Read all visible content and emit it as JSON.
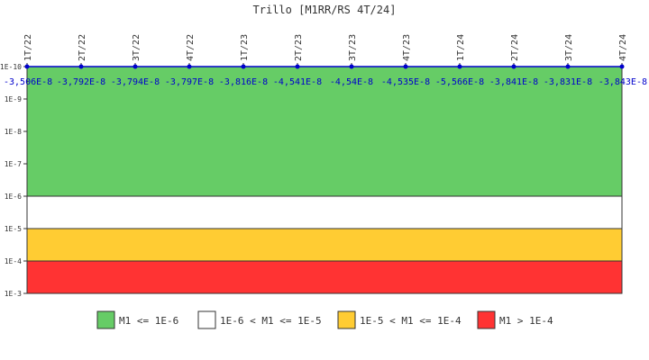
{
  "chart_data": {
    "type": "area",
    "title": "Trillo [M1RR/RS 4T/24]",
    "xlabel": "",
    "ylabel": "",
    "y_scale": "log",
    "y_axis_inverted": true,
    "ylim": [
      1e-10,
      0.001
    ],
    "y_ticks": [
      "1E-10",
      "1E-9",
      "1E-8",
      "1E-7",
      "1E-6",
      "1E-5",
      "1E-4",
      "1E-3"
    ],
    "categories": [
      "1T/22",
      "2T/22",
      "3T/22",
      "4T/22",
      "1T/23",
      "2T/23",
      "3T/23",
      "4T/23",
      "1T/24",
      "2T/24",
      "3T/24",
      "4T/24"
    ],
    "series": [
      {
        "values": [
          -3.506e-08,
          -3.792e-08,
          -3.794e-08,
          -3.797e-08,
          -3.816e-08,
          -4.541e-08,
          -4.54e-08,
          -4.535e-08,
          -5.566e-08,
          -3.841e-08,
          -3.831e-08,
          -3.843e-08
        ],
        "data_labels": [
          "-3,506E-8",
          "-3,792E-8",
          "-3,794E-8",
          "-3,797E-8",
          "-3,816E-8",
          "-4,541E-8",
          "-4,54E-8",
          "-4,535E-8",
          "-5,566E-8",
          "-3,841E-8",
          "-3,831E-8",
          "-3,843E-8"
        ],
        "color": "#0000cc"
      }
    ],
    "bands": [
      {
        "from": 1e-10,
        "to": 1e-06,
        "color": "#66cc66",
        "label": "M1 <= 1E-6"
      },
      {
        "from": 1e-06,
        "to": 1e-05,
        "color": "#ffffff",
        "label": "1E-6 < M1 <= 1E-5"
      },
      {
        "from": 1e-05,
        "to": 0.0001,
        "color": "#ffcc33",
        "label": "1E-5 < M1 <= 1E-4"
      },
      {
        "from": 0.0001,
        "to": 0.001,
        "color": "#ff3333",
        "label": "M1 > 1E-4"
      }
    ],
    "grid": false,
    "legend_position": "bottom"
  }
}
